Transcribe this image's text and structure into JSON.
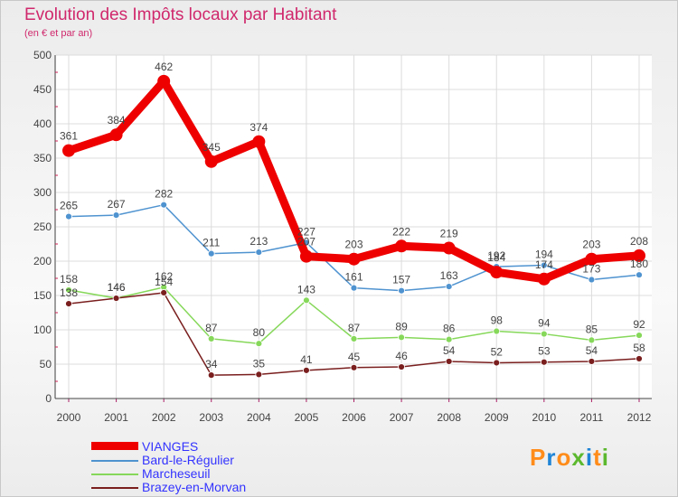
{
  "title": "Evolution des Impôts locaux par Habitant",
  "subtitle": "(en € et par an)",
  "logo": {
    "text": "Proxiti"
  },
  "chart_data": {
    "type": "line",
    "title": "Evolution des Impôts locaux par Habitant",
    "subtitle": "(en € et par an)",
    "xlabel": "",
    "ylabel": "",
    "x": [
      "2000",
      "2001",
      "2002",
      "2003",
      "2004",
      "2005",
      "2006",
      "2007",
      "2008",
      "2009",
      "2010",
      "2011",
      "2012"
    ],
    "y_ticks": [
      "0",
      "50",
      "100",
      "150",
      "200",
      "250",
      "300",
      "350",
      "400",
      "450",
      "500"
    ],
    "ylim": [
      0,
      500
    ],
    "grid": true,
    "legend_placement": "bottom-left",
    "series": [
      {
        "name": "VIANGES",
        "color": "#ee0000",
        "emphasis": true,
        "values": [
          361,
          384,
          462,
          345,
          374,
          207,
          203,
          222,
          219,
          184,
          174,
          203,
          208
        ],
        "labels": [
          "361",
          "384",
          "462",
          "345",
          "374",
          "207",
          "203",
          "222",
          "219",
          "184",
          "174",
          "203",
          "208"
        ]
      },
      {
        "name": "Bard-le-Régulier",
        "color": "#4f93d0",
        "emphasis": false,
        "values": [
          265,
          267,
          282,
          211,
          213,
          227,
          161,
          157,
          163,
          192,
          194,
          173,
          180
        ],
        "labels": [
          "265",
          "267",
          "282",
          "211",
          "213",
          "227",
          "161",
          "157",
          "163",
          "192",
          "194",
          "173",
          "180"
        ]
      },
      {
        "name": "Marcheseuil",
        "color": "#86d85a",
        "emphasis": false,
        "values": [
          158,
          146,
          162,
          87,
          80,
          143,
          87,
          89,
          86,
          98,
          94,
          85,
          92
        ],
        "labels": [
          "158",
          "146",
          "162",
          "87",
          "80",
          "143",
          "87",
          "89",
          "86",
          "98",
          "94",
          "85",
          "92"
        ]
      },
      {
        "name": "Brazey-en-Morvan",
        "color": "#7a1e1e",
        "emphasis": false,
        "values": [
          138,
          146,
          154,
          34,
          35,
          41,
          45,
          46,
          54,
          52,
          53,
          54,
          58
        ],
        "labels": [
          "138",
          "146",
          "154",
          "34",
          "35",
          "41",
          "45",
          "46",
          "54",
          "52",
          "53",
          "54",
          "58"
        ]
      }
    ]
  }
}
